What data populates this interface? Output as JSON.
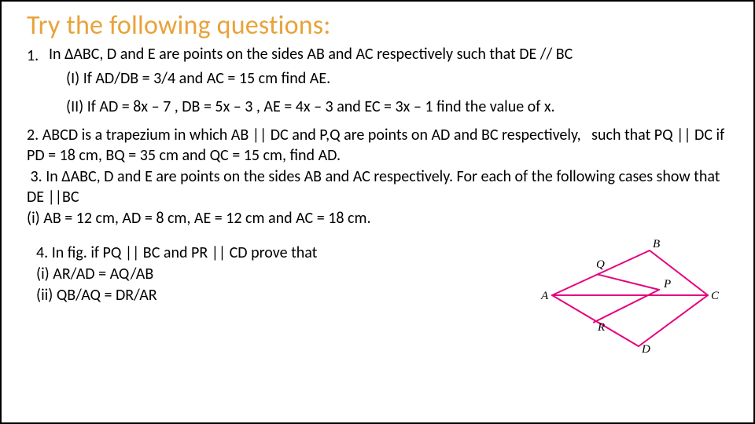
{
  "title": "Try the following questions:",
  "q1": {
    "num": "1.",
    "intro": "In ΔABC, D and E are points on the sides AB and AC respectively such that DE  //  BC",
    "part1": "(I) If AD/DB = 3/4 and AC = 15 cm find AE.",
    "part2": "(II) If AD = 8x – 7 , DB = 5x – 3 , AE = 4x – 3 and EC = 3x – 1  find the value of x."
  },
  "block23": "2. ABCD is a trapezium in which AB || DC and P,Q are points on AD and BC respectively,   such that PQ || DC if PD = 18 cm, BQ = 35 cm and QC = 15 cm, find AD.\n 3. In ΔABC, D and E are points on the sides AB and AC respectively. For each of the following cases show that DE ||BC\n(i) AB = 12 cm, AD = 8 cm, AE = 12 cm and AC = 18 cm.",
  "q4": {
    "line1": "4. In fig. if PQ || BC and PR || CD prove that",
    "line2": "(i)  AR/AD  =  AQ/AB",
    "line3": "(ii)  QB/AQ  =  DR/AR"
  },
  "figure": {
    "line_color": "#e6007e",
    "line_width": 2,
    "labels": {
      "A": "A",
      "B": "B",
      "C": "C",
      "D": "D",
      "P": "P",
      "Q": "Q",
      "R": "R"
    }
  }
}
